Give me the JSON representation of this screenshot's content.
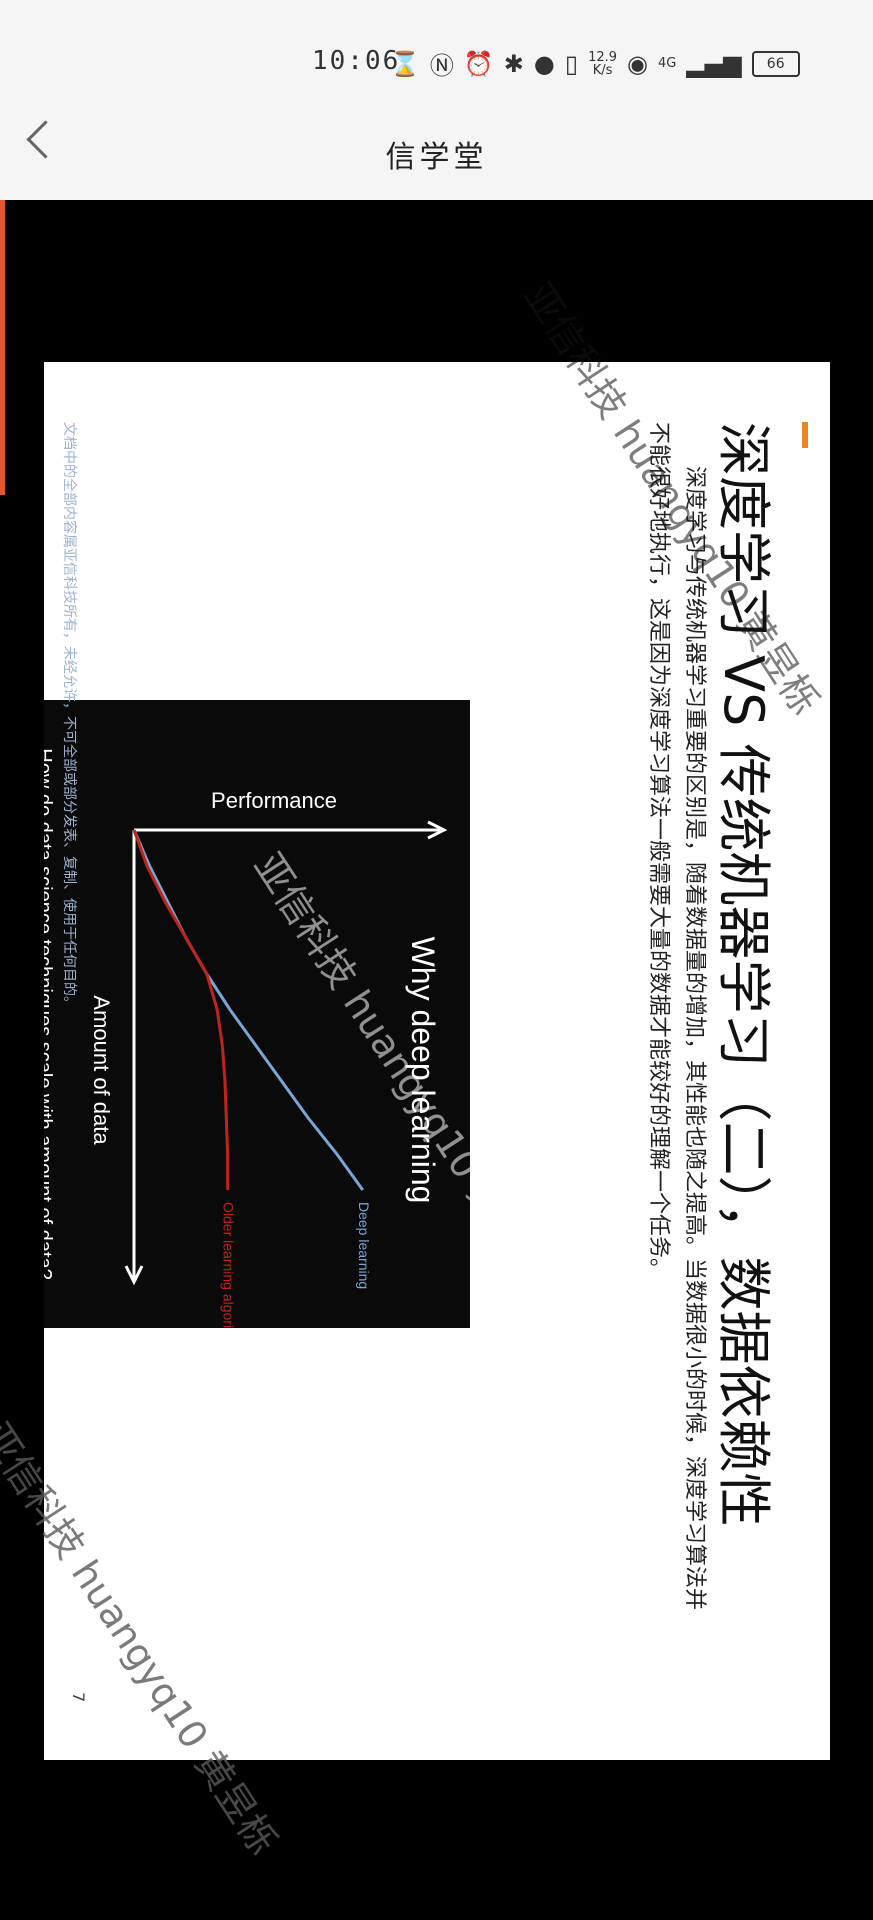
{
  "status_bar": {
    "time": "10:06",
    "net_speed_value": "12.9",
    "net_speed_unit": "K/s",
    "signal": "4G",
    "battery": "66"
  },
  "header": {
    "title": "信学堂"
  },
  "slide": {
    "title": "深度学习 VS 传统机器学习（二），数据依赖性",
    "paragraph_1": "深度学习与传统机器学习重要的区别是，随着数据量的增加，其性能也随之提高。当数据很小的时候，深度学习算法并",
    "paragraph_2": "不能很好地执行，这是因为深度学习算法一般需要大量的数据才能较好的理解一个任务。",
    "page_number": "7",
    "footer_note": "文档中的全部内容属亚信科技所有，未经允许，不可全部或部分发表、复制、使用于任何目的。"
  },
  "chart_data": {
    "type": "line",
    "title": "Why deep learning",
    "caption": "How do data science techniques scale with amount of data?",
    "xlabel": "Amount of data",
    "ylabel": "Performance",
    "x": [
      0,
      10,
      20,
      30,
      40,
      50,
      60,
      70,
      80,
      90,
      100
    ],
    "series": [
      {
        "name": "Deep learning",
        "color": "#7aa6d6",
        "values": [
          0,
          6,
          13,
          20,
          28,
          37,
          47,
          57,
          67,
          78,
          88
        ]
      },
      {
        "name": "Older learning algorithms",
        "color": "#c0231e",
        "values": [
          0,
          5,
          12,
          20,
          28,
          32,
          34,
          35,
          35.5,
          36,
          36
        ]
      }
    ]
  },
  "watermark": "亚信科技 huangyq10 黄昱栎"
}
